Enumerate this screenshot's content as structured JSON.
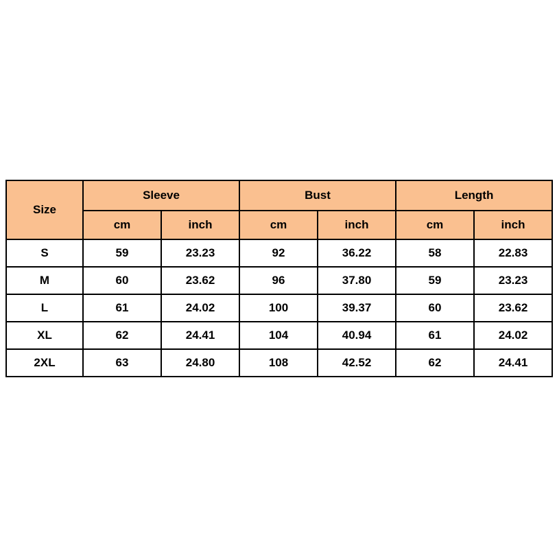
{
  "colors": {
    "header_bg": "#fac090",
    "border": "#000000",
    "text": "#000000",
    "page_bg": "#ffffff"
  },
  "table": {
    "size_header": "Size",
    "col_groups": [
      {
        "label": "Sleeve"
      },
      {
        "label": "Bust"
      },
      {
        "label": "Length"
      }
    ],
    "unit_headers": [
      "cm",
      "inch",
      "cm",
      "inch",
      "cm",
      "inch"
    ],
    "rows": [
      {
        "size": "S",
        "values": [
          "59",
          "23.23",
          "92",
          "36.22",
          "58",
          "22.83"
        ]
      },
      {
        "size": "M",
        "values": [
          "60",
          "23.62",
          "96",
          "37.80",
          "59",
          "23.23"
        ]
      },
      {
        "size": "L",
        "values": [
          "61",
          "24.02",
          "100",
          "39.37",
          "60",
          "23.62"
        ]
      },
      {
        "size": "XL",
        "values": [
          "62",
          "24.41",
          "104",
          "40.94",
          "61",
          "24.02"
        ]
      },
      {
        "size": "2XL",
        "values": [
          "63",
          "24.80",
          "108",
          "42.52",
          "62",
          "24.41"
        ]
      }
    ]
  }
}
